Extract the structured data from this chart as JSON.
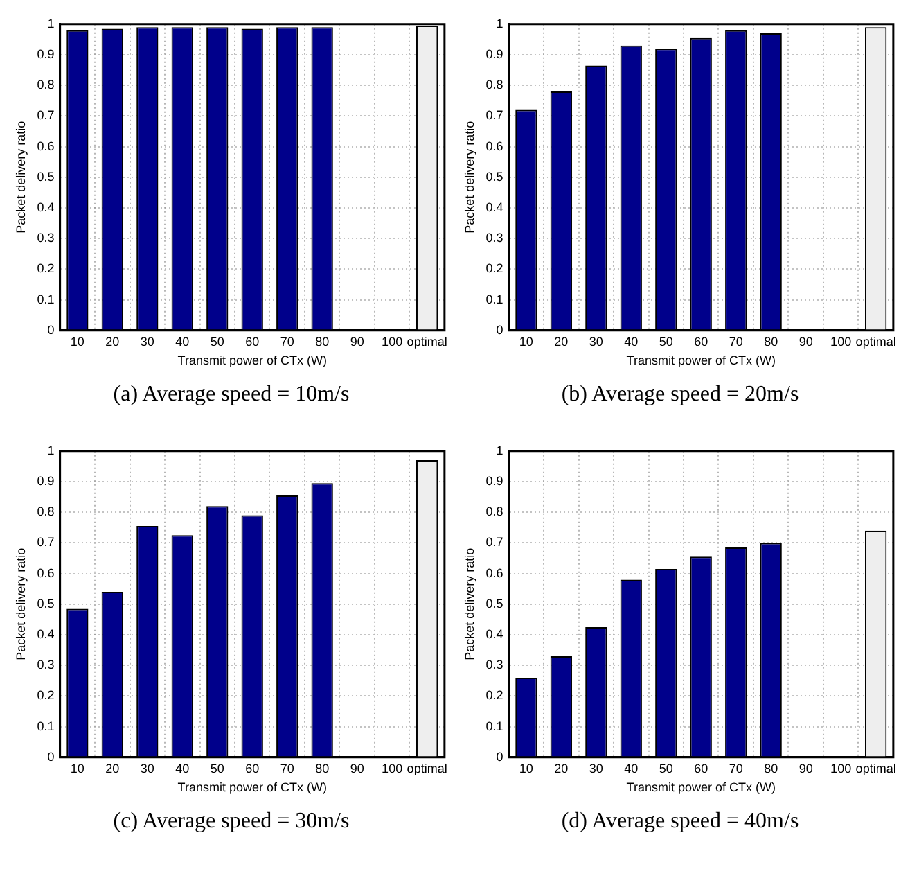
{
  "chart_data": [
    {
      "type": "bar",
      "title": "(a)  Average speed = 10m/s",
      "xlabel": "Transmit power of CTx (W)",
      "ylabel": "Packet delivery ratio",
      "categories": [
        "10",
        "20",
        "30",
        "40",
        "50",
        "60",
        "70",
        "80",
        "90",
        "100",
        "optimal"
      ],
      "values": [
        0.98,
        0.985,
        0.99,
        0.99,
        0.99,
        0.985,
        0.99,
        0.99,
        null,
        null,
        0.995
      ],
      "colors": [
        "#00008b",
        "#00008b",
        "#00008b",
        "#00008b",
        "#00008b",
        "#00008b",
        "#00008b",
        "#00008b",
        "#00008b",
        "#00008b",
        "#eeeeee"
      ],
      "ylim": [
        0,
        1
      ],
      "yticks": [
        0,
        0.1,
        0.2,
        0.3,
        0.4,
        0.5,
        0.6,
        0.7,
        0.8,
        0.9,
        1
      ],
      "grid": true
    },
    {
      "type": "bar",
      "title": "(b)  Average speed = 20m/s",
      "xlabel": "Transmit power of CTx (W)",
      "ylabel": "Packet delivery ratio",
      "categories": [
        "10",
        "20",
        "30",
        "40",
        "50",
        "60",
        "70",
        "80",
        "90",
        "100",
        "optimal"
      ],
      "values": [
        0.72,
        0.78,
        0.865,
        0.93,
        0.92,
        0.955,
        0.98,
        0.97,
        null,
        null,
        0.99
      ],
      "colors": [
        "#00008b",
        "#00008b",
        "#00008b",
        "#00008b",
        "#00008b",
        "#00008b",
        "#00008b",
        "#00008b",
        "#00008b",
        "#00008b",
        "#eeeeee"
      ],
      "ylim": [
        0,
        1
      ],
      "yticks": [
        0,
        0.1,
        0.2,
        0.3,
        0.4,
        0.5,
        0.6,
        0.7,
        0.8,
        0.9,
        1
      ],
      "grid": true
    },
    {
      "type": "bar",
      "title": "(c)  Average speed = 30m/s",
      "xlabel": "Transmit power of CTx (W)",
      "ylabel": "Packet delivery ratio",
      "categories": [
        "10",
        "20",
        "30",
        "40",
        "50",
        "60",
        "70",
        "80",
        "90",
        "100",
        "optimal"
      ],
      "values": [
        0.485,
        0.54,
        0.755,
        0.725,
        0.82,
        0.79,
        0.855,
        0.895,
        null,
        null,
        0.97
      ],
      "colors": [
        "#00008b",
        "#00008b",
        "#00008b",
        "#00008b",
        "#00008b",
        "#00008b",
        "#00008b",
        "#00008b",
        "#00008b",
        "#00008b",
        "#eeeeee"
      ],
      "ylim": [
        0,
        1
      ],
      "yticks": [
        0,
        0.1,
        0.2,
        0.3,
        0.4,
        0.5,
        0.6,
        0.7,
        0.8,
        0.9,
        1
      ],
      "grid": true
    },
    {
      "type": "bar",
      "title": "(d)  Average speed = 40m/s",
      "xlabel": "Transmit power of CTx (W)",
      "ylabel": "Packet delivery ratio",
      "categories": [
        "10",
        "20",
        "30",
        "40",
        "50",
        "60",
        "70",
        "80",
        "90",
        "100",
        "optimal"
      ],
      "values": [
        0.26,
        0.33,
        0.425,
        0.58,
        0.615,
        0.655,
        0.685,
        0.7,
        null,
        null,
        0.74
      ],
      "colors": [
        "#00008b",
        "#00008b",
        "#00008b",
        "#00008b",
        "#00008b",
        "#00008b",
        "#00008b",
        "#00008b",
        "#00008b",
        "#00008b",
        "#eeeeee"
      ],
      "ylim": [
        0,
        1
      ],
      "yticks": [
        0,
        0.1,
        0.2,
        0.3,
        0.4,
        0.5,
        0.6,
        0.7,
        0.8,
        0.9,
        1
      ],
      "grid": true
    }
  ]
}
